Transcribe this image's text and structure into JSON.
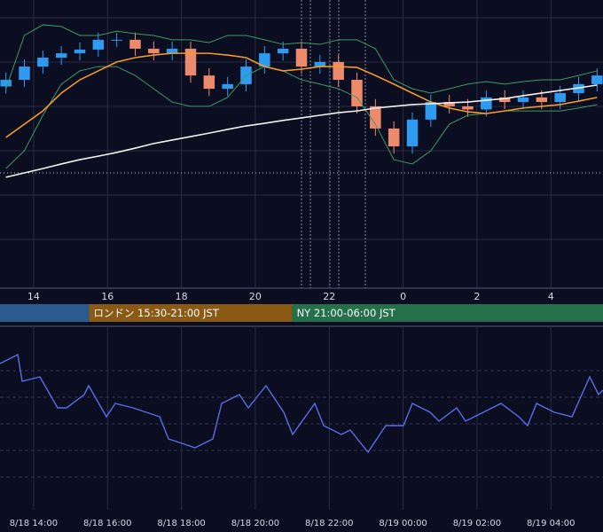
{
  "chart_data": [
    {
      "type": "candlestick",
      "x": [
        13.25,
        13.75,
        14.25,
        14.75,
        15.25,
        15.75,
        16.25,
        16.75,
        17.25,
        17.75,
        18.25,
        18.75,
        19.25,
        19.75,
        20.25,
        20.75,
        21.25,
        21.75,
        22.25,
        22.75,
        23.25,
        23.75,
        24.25,
        24.75,
        25.25,
        25.75,
        26.25,
        26.75,
        27.25,
        27.75,
        28.25,
        28.75,
        29.25
      ],
      "open": [
        70.0,
        72.3,
        76.9,
        80.0,
        81.5,
        82.8,
        86.2,
        86.2,
        83.1,
        81.5,
        83.1,
        73.8,
        69.2,
        70.8,
        76.9,
        81.5,
        83.1,
        76.9,
        78.5,
        72.3,
        63.1,
        55.4,
        49.2,
        58.5,
        64.6,
        63.1,
        62.0,
        66.2,
        64.6,
        66.2,
        64.6,
        67.7,
        70.8
      ],
      "high": [
        74.8,
        79.4,
        82.5,
        84.0,
        85.3,
        88.7,
        88.7,
        88.7,
        85.6,
        85.6,
        85.6,
        76.3,
        73.3,
        79.4,
        84.0,
        85.6,
        85.6,
        81.0,
        81.0,
        74.8,
        65.6,
        57.9,
        61.0,
        67.1,
        67.1,
        65.6,
        68.7,
        68.7,
        68.7,
        68.7,
        70.2,
        73.3,
        76.3
      ],
      "low": [
        67.5,
        69.8,
        74.4,
        77.5,
        79.0,
        80.3,
        83.7,
        80.6,
        79.0,
        79.0,
        71.3,
        66.7,
        66.7,
        68.3,
        74.4,
        79.0,
        74.4,
        74.4,
        69.8,
        60.6,
        52.9,
        46.7,
        46.7,
        56.0,
        60.6,
        59.5,
        59.5,
        62.1,
        62.1,
        62.1,
        62.1,
        65.2,
        68.3
      ],
      "close": [
        72.3,
        76.9,
        80.0,
        81.5,
        82.8,
        86.2,
        86.2,
        83.1,
        81.5,
        83.1,
        73.8,
        69.2,
        70.8,
        76.9,
        81.5,
        83.1,
        76.9,
        78.5,
        72.3,
        63.1,
        55.4,
        49.2,
        58.5,
        64.6,
        63.1,
        62.0,
        66.2,
        64.6,
        66.2,
        64.6,
        67.7,
        70.8,
        73.8
      ],
      "up_color": "#2d9cf0",
      "down_color": "#ee8a6c",
      "series": [
        {
          "color": "#3f9b63",
          "values": [
            69.2,
            87.7,
            91.4,
            90.8,
            87.7,
            87.7,
            89.2,
            88.3,
            87.7,
            86.2,
            86.2,
            85.2,
            87.7,
            87.7,
            86.2,
            84.6,
            85.2,
            84.6,
            86.2,
            86.2,
            83.1,
            72.3,
            69.2,
            67.7,
            69.2,
            70.8,
            71.7,
            70.8,
            71.7,
            72.3,
            72.3,
            73.8,
            75.4
          ]
        },
        {
          "color": "#3f9b63",
          "values": [
            41.5,
            47.7,
            60.0,
            70.8,
            75.4,
            76.9,
            76.9,
            73.8,
            69.2,
            64.6,
            63.1,
            63.1,
            66.2,
            73.8,
            76.9,
            75.4,
            72.3,
            70.8,
            69.2,
            66.2,
            56.9,
            44.6,
            43.1,
            47.7,
            56.9,
            60.0,
            60.6,
            61.5,
            61.5,
            61.5,
            61.5,
            62.5,
            63.7
          ]
        },
        {
          "color": "#f39a2b",
          "values": [
            52.3,
            56.9,
            61.5,
            67.7,
            72.3,
            75.4,
            78.5,
            80.0,
            80.9,
            81.5,
            81.5,
            81.5,
            80.9,
            80.0,
            76.9,
            75.4,
            76.0,
            76.9,
            76.9,
            76.6,
            73.8,
            70.8,
            67.7,
            64.6,
            62.5,
            61.2,
            60.6,
            61.5,
            62.5,
            63.1,
            63.7,
            64.9,
            66.2
          ]
        },
        {
          "color": "#f2f2f2",
          "values": [
            38.5,
            40.0,
            41.5,
            43.1,
            44.6,
            45.8,
            47.1,
            48.6,
            50.2,
            51.4,
            52.6,
            53.8,
            55.1,
            56.3,
            57.2,
            58.2,
            59.1,
            60.0,
            60.9,
            61.5,
            62.5,
            63.1,
            63.7,
            64.0,
            64.3,
            64.6,
            65.2,
            65.8,
            66.8,
            67.7,
            68.6,
            69.5,
            70.5
          ]
        }
      ],
      "hline": 40.0,
      "xlim": [
        13.09,
        29.41
      ],
      "ylim": [
        0,
        100
      ],
      "xticks": [
        14,
        16,
        18,
        20,
        22,
        {
          "value": 24,
          "label": "0"
        },
        {
          "value": 26,
          "label": "2"
        },
        {
          "value": 28,
          "label": "4"
        }
      ],
      "sessions": [
        {
          "label": null,
          "start": 9,
          "end": 15.5,
          "color": "#2b5a8c"
        },
        {
          "label": "ロンドン 15:30-21:00 JST",
          "start": 15.5,
          "end": 21,
          "color": "#8a5a14"
        },
        {
          "label": "NY 21:00-06:00 JST",
          "start": 21,
          "end": 30,
          "color": "#23704a"
        }
      ]
    },
    {
      "type": "line",
      "x": [
        13.09,
        13.33,
        13.57,
        13.69,
        14.17,
        14.65,
        14.89,
        15.37,
        15.49,
        15.97,
        16.21,
        16.69,
        17.41,
        17.65,
        18.37,
        18.85,
        19.09,
        19.57,
        19.81,
        20.29,
        20.77,
        21.01,
        21.61,
        21.85,
        22.33,
        22.57,
        23.05,
        23.53,
        24.01,
        24.25,
        24.73,
        24.97,
        25.45,
        25.69,
        26.17,
        26.65,
        27.13,
        27.37,
        27.61,
        28.09,
        28.57,
        29.05,
        29.29,
        29.41
      ],
      "values": [
        79,
        81.5,
        84,
        69,
        71.5,
        54,
        54,
        61.5,
        66.5,
        49,
        56.5,
        54,
        49,
        36.5,
        31.5,
        36.5,
        56.5,
        61.5,
        54,
        66.5,
        51.5,
        39,
        56.5,
        44,
        39,
        41.5,
        29,
        44,
        44,
        56.5,
        51.5,
        46.5,
        54,
        46.5,
        51.5,
        56.5,
        49,
        44,
        56.5,
        51.5,
        49,
        71.5,
        61.5,
        64
      ],
      "color": "#5b6ee8",
      "xlim": [
        13.09,
        29.41
      ],
      "ylim": [
        0,
        100
      ],
      "xticks": [
        {
          "value": 14,
          "label": "8/18 14:00"
        },
        {
          "value": 16,
          "label": "8/18 16:00"
        },
        {
          "value": 18,
          "label": "8/18 18:00"
        },
        {
          "value": 20,
          "label": "8/18 20:00"
        },
        {
          "value": 22,
          "label": "8/18 22:00"
        },
        {
          "value": 24,
          "label": "8/19 00:00"
        },
        {
          "value": 26,
          "label": "8/19 02:00"
        },
        {
          "value": 28,
          "label": "8/19 04:00"
        }
      ]
    }
  ]
}
